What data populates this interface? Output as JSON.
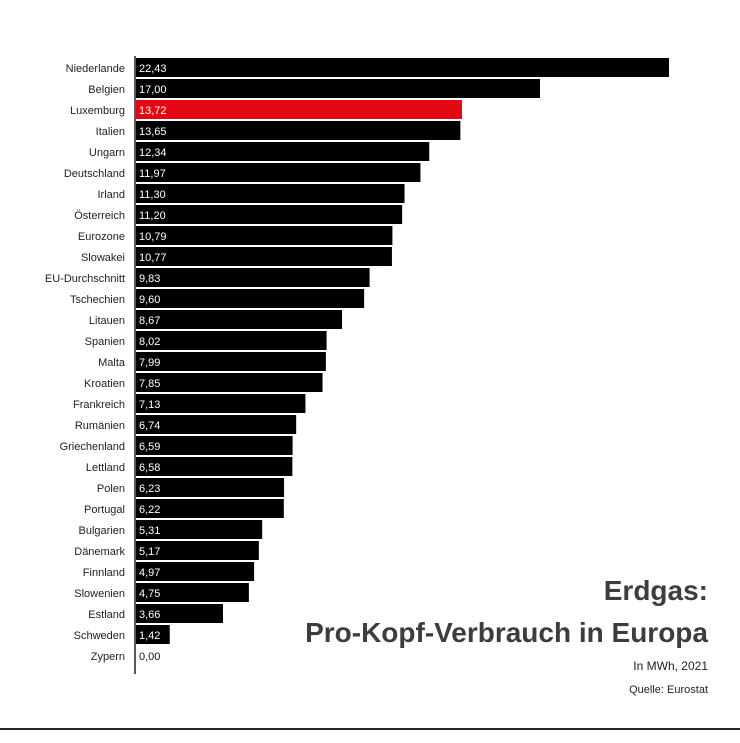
{
  "title_line1": "Erdgas:",
  "title_line2": "Pro-Kopf-Verbrauch in Europa",
  "subtitle": "In MWh, 2021",
  "source": "Quelle: Eurostat",
  "colors": {
    "bar": "#000000",
    "highlight": "#e30613",
    "axis": "#222222"
  },
  "chart_data": {
    "type": "bar",
    "orientation": "horizontal",
    "categories": [
      "Niederlande",
      "Belgien",
      "Luxemburg",
      "Italien",
      "Ungarn",
      "Deutschland",
      "Irland",
      "Österreich",
      "Eurozone",
      "Slowakei",
      "EU-Durchschnitt",
      "Tschechien",
      "Litauen",
      "Spanien",
      "Malta",
      "Kroatien",
      "Frankreich",
      "Rumänien",
      "Griechenland",
      "Lettland",
      "Polen",
      "Portugal",
      "Bulgarien",
      "Dänemark",
      "Finnland",
      "Slowenien",
      "Estland",
      "Schweden",
      "Zypern"
    ],
    "values": [
      22.43,
      17.0,
      13.72,
      13.65,
      12.34,
      11.97,
      11.3,
      11.2,
      10.79,
      10.77,
      9.83,
      9.6,
      8.67,
      8.02,
      7.99,
      7.85,
      7.13,
      6.74,
      6.59,
      6.58,
      6.23,
      6.22,
      5.31,
      5.17,
      4.97,
      4.75,
      3.66,
      1.42,
      0.0
    ],
    "value_labels": [
      "22,43",
      "17,00",
      "13,72",
      "13,65",
      "12,34",
      "11,97",
      "11,30",
      "11,20",
      "10,79",
      "10,77",
      "9,83",
      "9,60",
      "8,67",
      "8,02",
      "7,99",
      "7,85",
      "7,13",
      "6,74",
      "6,59",
      "6,58",
      "6,23",
      "6,22",
      "5,31",
      "5,17",
      "4,97",
      "4,75",
      "3,66",
      "1,42",
      "0,00"
    ],
    "highlight_category": "Luxemburg",
    "xlim": [
      0,
      22.43
    ],
    "grid": false,
    "legend": "none"
  }
}
